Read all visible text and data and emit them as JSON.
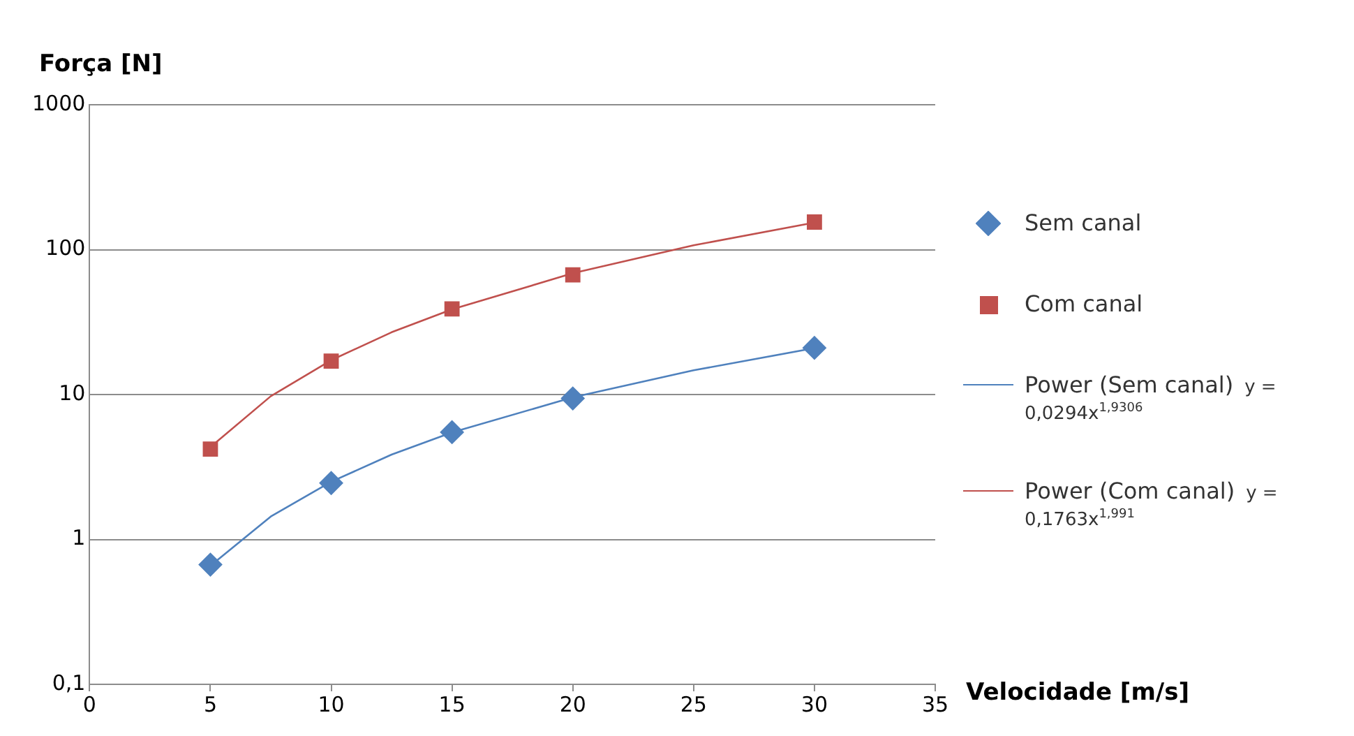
{
  "chart_data": {
    "type": "scatter",
    "xlabel": "Velocidade [m/s]",
    "ylabel": "Força [N]",
    "xlim": [
      0,
      35
    ],
    "xticks": [
      0,
      5,
      10,
      15,
      20,
      25,
      30,
      35
    ],
    "ylim": [
      0.1,
      1000
    ],
    "yticks": [
      {
        "value": 0.1,
        "label": "0,1"
      },
      1,
      10,
      100,
      1000
    ],
    "log": true,
    "grid": "y",
    "legend": "right",
    "series": [
      {
        "name": "Sem canal",
        "type": "scatter",
        "marker": "diamond",
        "color": "#4f81bd",
        "x": [
          5,
          10,
          15,
          20,
          30
        ],
        "values": [
          0.67,
          2.45,
          5.5,
          9.4,
          21
        ]
      },
      {
        "name": "Com canal",
        "type": "scatter",
        "marker": "square",
        "color": "#c0504d",
        "x": [
          5,
          10,
          15,
          20,
          30
        ],
        "values": [
          4.2,
          17,
          39,
          67,
          155
        ]
      },
      {
        "name": "Power (Sem canal)",
        "type": "line",
        "marker": "none",
        "color": "#4f81bd",
        "x": [
          5,
          7.5,
          10,
          12.5,
          15,
          20,
          25,
          30
        ],
        "values": [
          0.657,
          1.44,
          2.5,
          3.85,
          5.48,
          9.56,
          14.7,
          20.9
        ]
      },
      {
        "name": "Power (Com canal)",
        "type": "line",
        "marker": "none",
        "color": "#c0504d",
        "x": [
          5,
          7.5,
          10,
          12.5,
          15,
          20,
          25,
          30
        ],
        "values": [
          4.34,
          9.74,
          17.27,
          26.9,
          38.7,
          68.7,
          107.1,
          153.8
        ]
      }
    ],
    "annotations": [
      "y = 0,0294x$^{1,9306}$",
      "y = 0,1763x$^{1,991}$"
    ]
  }
}
